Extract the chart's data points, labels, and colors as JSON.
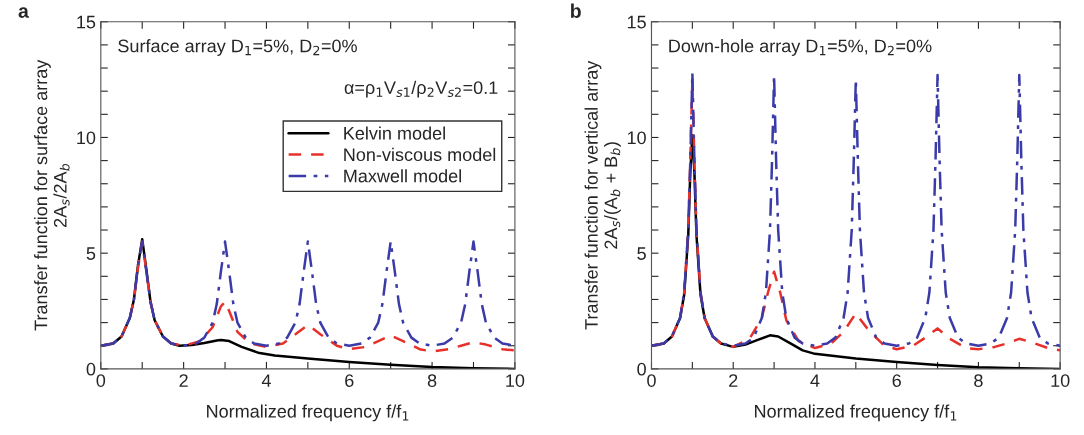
{
  "chart_data": [
    {
      "type": "line",
      "title": "a",
      "xlabel": "Normalized frequency f/f$_{1}$",
      "ylabel": "Transfer function for surface array\n2A$_{s}$/2A$_{b}$",
      "annotations": [
        "Surface array D$_{1}$=5%, D$_{2}$=0%",
        "α=ρ$_{1}$V$_{s1}$/ρ$_{2}$V$_{s2}$=0.1"
      ],
      "xlim": [
        0,
        10
      ],
      "ylim": [
        0,
        15
      ],
      "xticks": [
        0,
        {
          "value": 1,
          "label": null
        },
        2,
        {
          "value": 3,
          "label": null
        },
        4,
        {
          "value": 5,
          "label": null
        },
        6,
        {
          "value": 7,
          "label": null
        },
        8,
        {
          "value": 9,
          "label": null
        },
        10
      ],
      "yticks": [
        0,
        {
          "value": 1,
          "label": null
        },
        {
          "value": 2,
          "label": null
        },
        {
          "value": 3,
          "label": null
        },
        {
          "value": 4,
          "label": null
        },
        5,
        {
          "value": 6,
          "label": null
        },
        {
          "value": 7,
          "label": null
        },
        {
          "value": 8,
          "label": null
        },
        {
          "value": 9,
          "label": null
        },
        10,
        {
          "value": 11,
          "label": null
        },
        {
          "value": 12,
          "label": null
        },
        {
          "value": 13,
          "label": null
        },
        {
          "value": 14,
          "label": null
        },
        15
      ],
      "grid": false,
      "legend": "top right",
      "series": [
        {
          "name": "Kelvin model",
          "color": "#000000",
          "line_style": "solid",
          "x": [
            0,
            0.3,
            0.5,
            0.7,
            0.8,
            0.9,
            1.0,
            1.1,
            1.2,
            1.3,
            1.5,
            1.7,
            1.9,
            2.2,
            2.5,
            2.8,
            2.9,
            3.1,
            3.4,
            3.8,
            4.2,
            5,
            6,
            7,
            8,
            9,
            10
          ],
          "values": [
            1.0,
            1.1,
            1.4,
            2.2,
            3.0,
            4.5,
            5.6,
            4.3,
            2.9,
            2.1,
            1.4,
            1.1,
            1.0,
            1.03,
            1.12,
            1.23,
            1.25,
            1.2,
            0.95,
            0.7,
            0.58,
            0.45,
            0.3,
            0.18,
            0.08,
            0.03,
            0.0
          ]
        },
        {
          "name": "Non-viscous model",
          "color": "#e8302a",
          "line_style": "dashed",
          "x": [
            0,
            0.3,
            0.5,
            0.7,
            0.8,
            0.9,
            1.0,
            1.1,
            1.2,
            1.3,
            1.5,
            1.7,
            2.0,
            2.4,
            2.7,
            2.9,
            3.0,
            3.1,
            3.3,
            3.6,
            4.0,
            4.4,
            4.7,
            5.0,
            5.3,
            5.7,
            6.0,
            6.4,
            6.7,
            7.0,
            7.3,
            7.7,
            8.0,
            8.4,
            8.7,
            9.0,
            9.3,
            9.7,
            10
          ],
          "values": [
            1.0,
            1.1,
            1.4,
            2.2,
            3.0,
            4.4,
            5.5,
            4.2,
            2.9,
            2.1,
            1.4,
            1.1,
            1.0,
            1.2,
            1.8,
            2.7,
            2.9,
            2.5,
            1.6,
            1.1,
            0.95,
            1.1,
            1.5,
            1.9,
            1.5,
            1.0,
            0.85,
            0.95,
            1.2,
            1.45,
            1.2,
            0.85,
            0.75,
            0.85,
            1.0,
            1.15,
            1.05,
            0.85,
            0.8
          ]
        },
        {
          "name": "Maxwell model",
          "color": "#3a3aa8",
          "line_style": "dashdot",
          "x": [
            0,
            0.3,
            0.5,
            0.7,
            0.8,
            0.9,
            1.0,
            1.1,
            1.2,
            1.3,
            1.5,
            1.7,
            2.0,
            2.3,
            2.5,
            2.7,
            2.8,
            2.9,
            3.0,
            3.1,
            3.2,
            3.3,
            3.5,
            3.7,
            4.0,
            4.3,
            4.5,
            4.7,
            4.8,
            4.9,
            5.0,
            5.1,
            5.2,
            5.3,
            5.5,
            5.7,
            6.0,
            6.3,
            6.5,
            6.7,
            6.8,
            6.9,
            7.0,
            7.1,
            7.2,
            7.3,
            7.5,
            7.7,
            8.0,
            8.3,
            8.5,
            8.7,
            8.8,
            8.9,
            9.0,
            9.1,
            9.2,
            9.3,
            9.5,
            9.7,
            10
          ],
          "values": [
            1.0,
            1.1,
            1.4,
            2.2,
            3.0,
            4.5,
            5.5,
            4.2,
            2.9,
            2.1,
            1.4,
            1.1,
            1.0,
            1.1,
            1.35,
            2.0,
            2.8,
            4.2,
            5.5,
            4.2,
            2.8,
            2.0,
            1.35,
            1.1,
            1.0,
            1.1,
            1.35,
            2.0,
            2.8,
            4.2,
            5.5,
            4.2,
            2.8,
            2.0,
            1.35,
            1.1,
            1.0,
            1.1,
            1.35,
            2.0,
            2.8,
            4.2,
            5.5,
            4.2,
            2.8,
            2.0,
            1.35,
            1.1,
            1.0,
            1.1,
            1.35,
            2.0,
            2.8,
            4.2,
            5.5,
            4.2,
            2.8,
            2.0,
            1.35,
            1.1,
            1.0
          ]
        }
      ]
    },
    {
      "type": "line",
      "title": "b",
      "xlabel": "Normalized frequency f/f$_{1}$",
      "ylabel": "Transfer function for vertical array\n2A$_{s}$/(A$_{b}$ + B$_{b}$)",
      "annotations": [
        "Down-hole array D$_{1}$=5%, D$_{2}$=0%"
      ],
      "xlim": [
        0,
        10
      ],
      "ylim": [
        0,
        15
      ],
      "xticks": [
        0,
        {
          "value": 1,
          "label": null
        },
        2,
        {
          "value": 3,
          "label": null
        },
        4,
        {
          "value": 5,
          "label": null
        },
        6,
        {
          "value": 7,
          "label": null
        },
        8,
        {
          "value": 9,
          "label": null
        },
        10
      ],
      "yticks": [
        0,
        {
          "value": 1,
          "label": null
        },
        {
          "value": 2,
          "label": null
        },
        {
          "value": 3,
          "label": null
        },
        {
          "value": 4,
          "label": null
        },
        5,
        {
          "value": 6,
          "label": null
        },
        {
          "value": 7,
          "label": null
        },
        {
          "value": 8,
          "label": null
        },
        {
          "value": 9,
          "label": null
        },
        10,
        {
          "value": 11,
          "label": null
        },
        {
          "value": 12,
          "label": null
        },
        {
          "value": 13,
          "label": null
        },
        {
          "value": 14,
          "label": null
        },
        15
      ],
      "grid": false,
      "legend": false,
      "series": [
        {
          "color": "#000000",
          "line_style": "solid",
          "x": [
            0,
            0.3,
            0.5,
            0.7,
            0.8,
            0.9,
            0.95,
            1.0,
            1.05,
            1.1,
            1.2,
            1.3,
            1.5,
            1.7,
            2.0,
            2.3,
            2.6,
            2.9,
            3.1,
            3.4,
            3.7,
            4,
            5,
            6,
            7,
            8,
            9,
            10
          ],
          "values": [
            1.0,
            1.1,
            1.4,
            2.2,
            3.2,
            5.8,
            8.5,
            10.1,
            8.5,
            5.8,
            3.2,
            2.2,
            1.4,
            1.1,
            0.95,
            1.05,
            1.25,
            1.45,
            1.4,
            1.1,
            0.8,
            0.65,
            0.45,
            0.3,
            0.17,
            0.07,
            0.03,
            0.0
          ]
        },
        {
          "color": "#e8302a",
          "line_style": "dashed",
          "x": [
            0,
            0.3,
            0.5,
            0.7,
            0.8,
            0.9,
            0.95,
            1.0,
            1.05,
            1.1,
            1.2,
            1.3,
            1.5,
            1.7,
            2.0,
            2.4,
            2.7,
            2.85,
            3.0,
            3.15,
            3.3,
            3.6,
            4.0,
            4.4,
            4.7,
            5.0,
            5.3,
            5.7,
            6.0,
            6.4,
            6.7,
            7.0,
            7.3,
            7.7,
            8.0,
            8.4,
            8.7,
            9.0,
            9.3,
            9.7,
            10
          ],
          "values": [
            1.0,
            1.1,
            1.4,
            2.2,
            3.3,
            6.0,
            9.0,
            12.5,
            9.0,
            6.0,
            3.3,
            2.2,
            1.4,
            1.1,
            0.95,
            1.3,
            2.2,
            3.3,
            4.2,
            3.3,
            2.1,
            1.2,
            0.9,
            1.1,
            1.6,
            2.4,
            1.7,
            1.0,
            0.85,
            1.0,
            1.35,
            1.75,
            1.3,
            0.9,
            0.85,
            0.95,
            1.1,
            1.3,
            1.15,
            0.9,
            0.8
          ]
        },
        {
          "color": "#3a3aa8",
          "line_style": "dashdot",
          "x": [
            0,
            0.3,
            0.5,
            0.7,
            0.8,
            0.9,
            0.95,
            1.0,
            1.05,
            1.1,
            1.2,
            1.3,
            1.5,
            1.7,
            2.0,
            2.3,
            2.5,
            2.7,
            2.8,
            2.9,
            2.95,
            3.0,
            3.05,
            3.1,
            3.2,
            3.3,
            3.5,
            3.7,
            4.0,
            4.3,
            4.5,
            4.7,
            4.8,
            4.9,
            4.95,
            5.0,
            5.05,
            5.1,
            5.2,
            5.3,
            5.5,
            5.7,
            6.0,
            6.3,
            6.5,
            6.7,
            6.8,
            6.9,
            6.95,
            7.0,
            7.05,
            7.1,
            7.2,
            7.3,
            7.5,
            7.7,
            8.0,
            8.3,
            8.5,
            8.7,
            8.8,
            8.9,
            8.95,
            9.0,
            9.05,
            9.1,
            9.2,
            9.3,
            9.5,
            9.7,
            10
          ],
          "values": [
            1.0,
            1.1,
            1.4,
            2.2,
            3.3,
            6.0,
            9.0,
            12.8,
            9.0,
            6.0,
            3.3,
            2.2,
            1.4,
            1.1,
            1.0,
            1.1,
            1.35,
            2.2,
            3.3,
            6.0,
            9.0,
            12.7,
            9.0,
            6.0,
            3.3,
            2.2,
            1.35,
            1.1,
            1.0,
            1.1,
            1.35,
            2.2,
            3.3,
            6.0,
            9.0,
            12.5,
            9.0,
            6.0,
            3.3,
            2.2,
            1.35,
            1.1,
            1.0,
            1.1,
            1.35,
            2.2,
            3.3,
            6.0,
            9.0,
            12.7,
            9.0,
            6.0,
            3.3,
            2.2,
            1.35,
            1.1,
            1.0,
            1.1,
            1.35,
            2.2,
            3.3,
            6.0,
            9.0,
            12.7,
            9.0,
            6.0,
            3.3,
            2.2,
            1.35,
            1.1,
            1.0
          ]
        }
      ]
    }
  ]
}
